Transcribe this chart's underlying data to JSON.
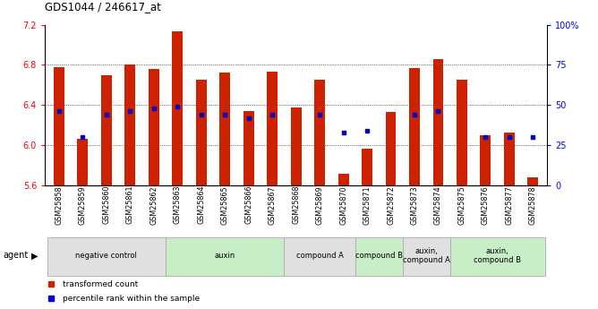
{
  "title": "GDS1044 / 246617_at",
  "samples": [
    "GSM25858",
    "GSM25859",
    "GSM25860",
    "GSM25861",
    "GSM25862",
    "GSM25863",
    "GSM25864",
    "GSM25865",
    "GSM25866",
    "GSM25867",
    "GSM25868",
    "GSM25869",
    "GSM25870",
    "GSM25871",
    "GSM25872",
    "GSM25873",
    "GSM25874",
    "GSM25875",
    "GSM25876",
    "GSM25877",
    "GSM25878"
  ],
  "bar_heights": [
    6.78,
    6.06,
    6.7,
    6.8,
    6.76,
    7.13,
    6.65,
    6.72,
    6.34,
    6.73,
    6.38,
    6.65,
    5.72,
    5.97,
    6.33,
    6.77,
    6.86,
    6.65,
    6.1,
    6.13,
    5.68
  ],
  "percentile_values": [
    46,
    30,
    44,
    46,
    48,
    49,
    44,
    44,
    42,
    44,
    null,
    44,
    33,
    34,
    null,
    44,
    46,
    null,
    30,
    30,
    30
  ],
  "ylim": [
    5.6,
    7.2
  ],
  "yticks": [
    5.6,
    6.0,
    6.4,
    6.8,
    7.2
  ],
  "right_ylim": [
    0,
    100
  ],
  "right_yticks": [
    0,
    25,
    50,
    75,
    100
  ],
  "right_yticklabels": [
    "0",
    "25",
    "50",
    "75",
    "100%"
  ],
  "bar_color": "#cc2200",
  "dot_color": "#0000cc",
  "bar_bottom": 5.6,
  "groups": [
    {
      "label": "negative control",
      "start": 0,
      "end": 5,
      "color": "#e0e0e0"
    },
    {
      "label": "auxin",
      "start": 5,
      "end": 10,
      "color": "#c8eec8"
    },
    {
      "label": "compound A",
      "start": 10,
      "end": 13,
      "color": "#e0e0e0"
    },
    {
      "label": "compound B",
      "start": 13,
      "end": 15,
      "color": "#c8eec8"
    },
    {
      "label": "auxin,\ncompound A",
      "start": 15,
      "end": 17,
      "color": "#e0e0e0"
    },
    {
      "label": "auxin,\ncompound B",
      "start": 17,
      "end": 21,
      "color": "#c8eec8"
    }
  ],
  "agent_label": "agent",
  "legend_items": [
    {
      "label": "transformed count",
      "color": "#cc2200",
      "marker": "s"
    },
    {
      "label": "percentile rank within the sample",
      "color": "#0000cc",
      "marker": "s"
    }
  ]
}
